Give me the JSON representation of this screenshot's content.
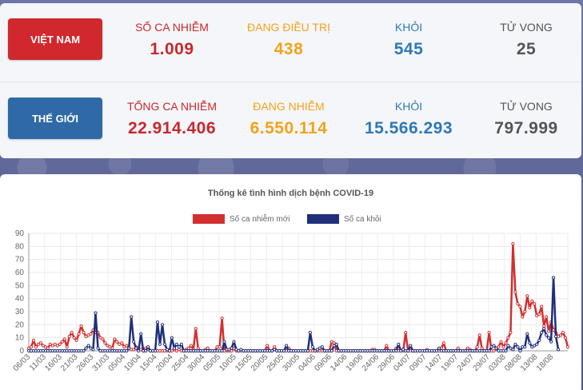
{
  "vietnam": {
    "button_label": "VIỆT NAM",
    "stats": [
      {
        "label": "SỐ CA NHIỄM",
        "value": "1.009",
        "color": "#c9282d"
      },
      {
        "label": "ĐANG ĐIỀU TRỊ",
        "value": "438",
        "color": "#f0a41a"
      },
      {
        "label": "KHỎI",
        "value": "545",
        "color": "#2e79b4"
      },
      {
        "label": "TỬ VONG",
        "value": "25",
        "color": "#555555"
      }
    ]
  },
  "world": {
    "button_label": "THẾ GIỚI",
    "stats": [
      {
        "label": "TỔNG CA NHIỄM",
        "value": "22.914.406",
        "color": "#c9282d"
      },
      {
        "label": "ĐANG NHIỄM",
        "value": "6.550.114",
        "color": "#f0a41a"
      },
      {
        "label": "KHỎI",
        "value": "15.566.293",
        "color": "#2e79b4"
      },
      {
        "label": "TỬ VONG",
        "value": "797.999",
        "color": "#555555"
      }
    ]
  },
  "chart_data": {
    "type": "line",
    "title": "Thống kê tình hình dịch bệnh COVID-19",
    "ylim": [
      0,
      90
    ],
    "yticks": [
      0,
      10,
      20,
      30,
      40,
      50,
      60,
      70,
      80,
      90
    ],
    "grid": true,
    "legend_position": "top",
    "x_tick_labels": [
      "06/03",
      "11/03",
      "16/03",
      "21/03",
      "26/03",
      "31/03",
      "05/04",
      "10/04",
      "15/04",
      "20/04",
      "25/04",
      "30/04",
      "05/05",
      "10/05",
      "15/05",
      "20/05",
      "25/05",
      "30/05",
      "04/06",
      "09/06",
      "14/06",
      "19/06",
      "24/06",
      "29/06",
      "04/07",
      "09/07",
      "14/07",
      "19/07",
      "24/07",
      "29/07",
      "03/08",
      "08/08",
      "13/08",
      "18/08"
    ],
    "series": [
      {
        "name": "Số ca nhiễm mới",
        "color": "#d32f2f",
        "values": [
          2,
          3,
          8,
          3,
          5,
          6,
          4,
          3,
          2,
          5,
          4,
          5,
          4,
          5,
          7,
          9,
          3,
          11,
          14,
          10,
          8,
          13,
          19,
          14,
          11,
          12,
          13,
          16,
          14,
          14,
          10,
          9,
          6,
          4,
          3,
          2,
          9,
          7,
          5,
          6,
          3,
          4,
          2,
          1,
          1,
          3,
          2,
          1,
          0,
          2,
          1,
          0,
          0,
          0,
          0,
          0,
          0,
          0,
          0,
          0,
          0,
          1,
          0,
          1,
          0,
          0,
          1,
          2,
          4,
          1,
          17,
          2,
          0,
          0,
          1,
          2,
          0,
          0,
          0,
          3,
          3,
          25,
          0,
          0,
          0,
          0,
          2,
          0,
          0,
          0,
          0,
          0,
          0,
          0,
          0,
          0,
          0,
          0,
          0,
          0,
          4,
          0,
          0,
          3,
          0,
          0,
          0,
          0,
          0,
          2,
          0,
          0,
          0,
          0,
          0,
          0,
          0,
          0,
          0,
          0,
          0,
          0,
          0,
          0,
          0,
          0,
          0,
          7,
          6,
          0,
          0,
          0,
          0,
          0,
          0,
          0,
          0,
          0,
          0,
          0,
          0,
          0,
          0,
          0,
          1,
          1,
          0,
          0,
          0,
          0,
          4,
          0,
          0,
          0,
          2,
          0,
          0,
          0,
          14,
          0,
          0,
          0,
          0,
          0,
          0,
          0,
          0,
          1,
          0,
          0,
          0,
          0,
          0,
          2,
          6,
          0,
          0,
          0,
          0,
          0,
          2,
          0,
          0,
          0,
          2,
          1,
          0,
          0,
          3,
          12,
          2,
          0,
          0,
          14,
          0,
          0,
          1,
          3,
          7,
          3,
          6,
          10,
          14,
          82,
          45,
          36,
          34,
          26,
          30,
          42,
          33,
          38,
          36,
          27,
          28,
          34,
          19,
          26,
          15,
          22,
          16,
          14,
          11,
          12,
          14,
          10,
          3
        ],
        "val_note": "approximate daily readings estimated from chart"
      },
      {
        "name": "Số ca khỏi",
        "color": "#1f2f7a",
        "values": [
          0,
          0,
          0,
          0,
          0,
          0,
          0,
          0,
          0,
          0,
          0,
          0,
          0,
          0,
          0,
          0,
          0,
          0,
          0,
          0,
          0,
          0,
          0,
          0,
          2,
          4,
          2,
          1,
          29,
          2,
          0,
          0,
          0,
          0,
          0,
          0,
          0,
          0,
          0,
          0,
          0,
          0,
          2,
          26,
          7,
          2,
          0,
          13,
          0,
          0,
          3,
          0,
          0,
          0,
          22,
          5,
          20,
          5,
          1,
          0,
          10,
          2,
          5,
          3,
          5,
          0,
          0,
          0,
          0,
          0,
          0,
          0,
          0,
          0,
          0,
          0,
          0,
          0,
          0,
          0,
          0,
          0,
          7,
          1,
          1,
          2,
          7,
          1,
          0,
          1,
          0,
          0,
          0,
          0,
          0,
          0,
          0,
          0,
          0,
          0,
          0,
          0,
          0,
          1,
          0,
          0,
          0,
          0,
          4,
          0,
          0,
          0,
          0,
          0,
          0,
          0,
          0,
          0,
          14,
          3,
          0,
          1,
          2,
          3,
          0,
          0,
          0,
          0,
          4,
          5,
          0,
          0,
          0,
          0,
          0,
          0,
          0,
          0,
          0,
          0,
          0,
          0,
          0,
          0,
          0,
          0,
          0,
          0,
          0,
          0,
          0,
          0,
          0,
          0,
          0,
          5,
          0,
          1,
          0,
          0,
          4,
          0,
          0,
          0,
          0,
          0,
          0,
          0,
          0,
          0,
          0,
          0,
          2,
          0,
          0,
          0,
          0,
          0,
          0,
          0,
          0,
          0,
          0,
          0,
          0,
          0,
          0,
          0,
          0,
          0,
          0,
          0,
          0,
          0,
          3,
          4,
          2,
          0,
          0,
          0,
          0,
          4,
          2,
          1,
          5,
          3,
          0,
          3,
          3,
          13,
          6,
          3,
          4,
          5,
          8,
          14,
          17,
          12,
          10,
          7,
          56,
          11,
          1
        ],
        "val_note": "approximate daily readings estimated from chart"
      }
    ]
  }
}
